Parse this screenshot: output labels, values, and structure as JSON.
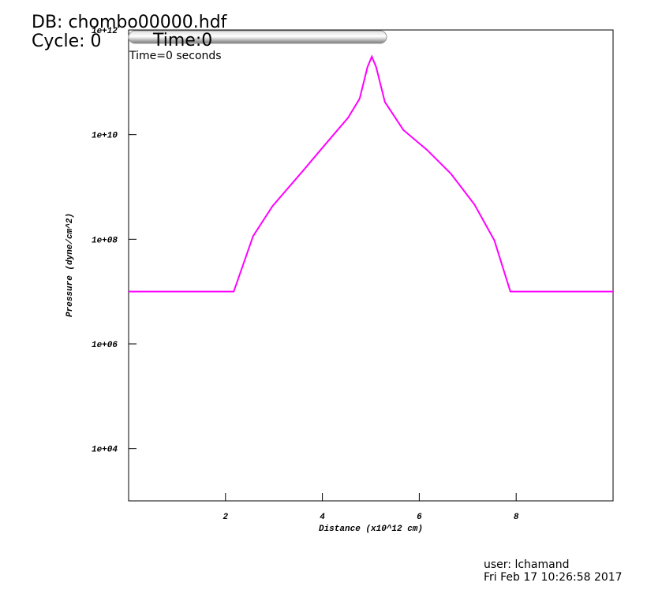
{
  "chart_data": {
    "type": "line",
    "header": {
      "database": "DB: chombo00000.hdf",
      "cycle": "Cycle: 0"
    },
    "time_slider": {
      "label": "Time:0"
    },
    "subtitle": "Time=0 seconds",
    "xlabel": "Distance (x10^12 cm)",
    "ylabel": "Pressure (dyne/cm^2)",
    "log_y": true,
    "xlim": [
      0,
      10
    ],
    "xticks": [
      2,
      4,
      6,
      8
    ],
    "ylim": [
      1000,
      1000000000000.0
    ],
    "yticks": [
      {
        "value": 10000,
        "label": "1e+04"
      },
      {
        "value": 1000000,
        "label": "1e+06"
      },
      {
        "value": 100000000,
        "label": "1e+08"
      },
      {
        "value": 10000000000,
        "label": "1e+10"
      },
      {
        "value": 1000000000000,
        "label": "1e+12"
      }
    ],
    "x": [
      0,
      2.17,
      2.57,
      2.97,
      3.55,
      4.04,
      4.53,
      4.77,
      4.93,
      5.02,
      5.11,
      5.29,
      5.67,
      6.16,
      6.65,
      7.14,
      7.55,
      7.88,
      10
    ],
    "series": [
      {
        "color": "#ff00ff",
        "values": [
          10000000.0,
          10000000.0,
          115000000.0,
          430000000.0,
          1800000000.0,
          6200000000.0,
          21000000000.0,
          49000000000.0,
          195000000000.0,
          310000000000.0,
          195000000000.0,
          42000000000.0,
          12300000000.0,
          5100000000.0,
          1800000000.0,
          460000000.0,
          95000000.0,
          10000000.0,
          10000000.0
        ]
      }
    ],
    "user_info": {
      "user": "user: lchamand",
      "date": "Fri Feb 17 10:26:58 2017"
    }
  }
}
